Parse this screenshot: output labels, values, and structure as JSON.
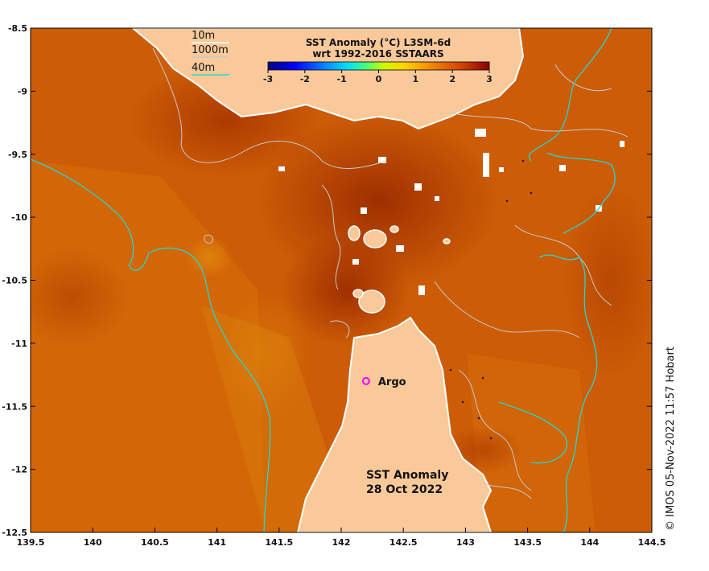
{
  "map": {
    "x_ticks": [
      "139.5",
      "140",
      "140.5",
      "141",
      "141.5",
      "142",
      "142.5",
      "143",
      "143.5",
      "144",
      "144.5"
    ],
    "y_ticks": [
      "-8.5",
      "-9",
      "-9.5",
      "-10",
      "-10.5",
      "-11",
      "-11.5",
      "-12",
      "-12.5"
    ],
    "lon_range": [
      139.5,
      144.5
    ],
    "lat_range": [
      -12.5,
      -8.5
    ]
  },
  "legend": {
    "depth_10m": "10m",
    "depth_1000m": "1000m",
    "depth_40m": "40m",
    "colors": {
      "contour_10m": "#ffffff",
      "contour_1000m": "#bbbbbb",
      "contour_40m": "#22d8cc",
      "land": "#f9c99a"
    }
  },
  "colorbar": {
    "title_line1": "SST Anomaly (°C) L3SM-6d",
    "title_line2": "wrt 1992-2016 SSTAARS",
    "ticks": [
      "-3",
      "-2",
      "-1",
      "0",
      "1",
      "2",
      "3"
    ],
    "range": [
      -3,
      3
    ]
  },
  "argo": {
    "label": "Argo",
    "lon": 142.2,
    "lat": -11.3,
    "color": "#ff00ff"
  },
  "annotation": {
    "line1": "SST Anomaly",
    "line2": "28 Oct 2022"
  },
  "credit": "© IMOS 05-Nov-2022 11:57 Hobart"
}
